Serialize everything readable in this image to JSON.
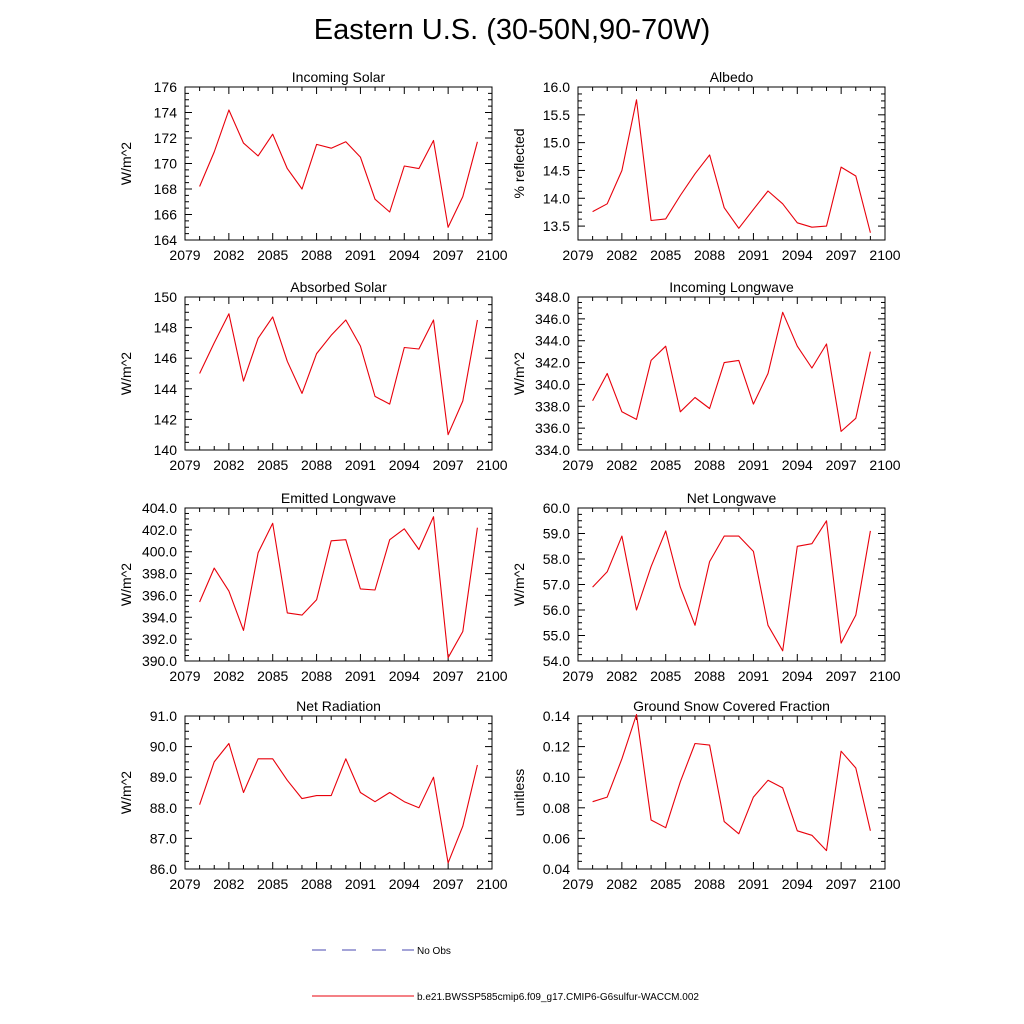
{
  "title": "Eastern U.S. (30-50N,90-70W)",
  "legend": {
    "obs_label": "No Obs",
    "obs_color": "#4a4ab0",
    "model_label": "b.e21.BWSSP585cmip6.f09_g17.CMIP6-G6sulfur-WACCM.002",
    "model_color": "#e8000b"
  },
  "chart_data": [
    {
      "type": "line",
      "title": "Incoming Solar",
      "ylabel": "W/m^2",
      "xlim": [
        2079,
        2100
      ],
      "x_ticks": [
        "2079",
        "2082",
        "2085",
        "2088",
        "2091",
        "2094",
        "2097",
        "2100"
      ],
      "ylim": [
        164,
        176
      ],
      "y_ticks": [
        "164",
        "166",
        "168",
        "170",
        "172",
        "174",
        "176"
      ],
      "series": [
        {
          "name": "b.e21.BWSSP585cmip6.f09_g17.CMIP6-G6sulfur-WACCM.002",
          "x": [
            2080,
            2081,
            2082,
            2083,
            2084,
            2085,
            2086,
            2087,
            2088,
            2089,
            2090,
            2091,
            2092,
            2093,
            2094,
            2095,
            2096,
            2097,
            2098,
            2099
          ],
          "values": [
            168.2,
            170.9,
            174.2,
            171.6,
            170.6,
            172.3,
            169.6,
            168.0,
            171.5,
            171.2,
            171.7,
            170.5,
            167.2,
            166.2,
            169.8,
            169.6,
            171.8,
            165.0,
            167.4,
            171.7
          ]
        }
      ]
    },
    {
      "type": "line",
      "title": "Albedo",
      "ylabel": "% reflected",
      "xlim": [
        2079,
        2100
      ],
      "x_ticks": [
        "2079",
        "2082",
        "2085",
        "2088",
        "2091",
        "2094",
        "2097",
        "2100"
      ],
      "ylim": [
        13.25,
        16.0
      ],
      "y_ticks": [
        "13.5",
        "14.0",
        "14.5",
        "15.0",
        "15.5",
        "16.0"
      ],
      "series": [
        {
          "name": "b.e21.BWSSP585cmip6.f09_g17.CMIP6-G6sulfur-WACCM.002",
          "x": [
            2080,
            2081,
            2082,
            2083,
            2084,
            2085,
            2086,
            2087,
            2088,
            2089,
            2090,
            2091,
            2092,
            2093,
            2094,
            2095,
            2096,
            2097,
            2098,
            2099
          ],
          "values": [
            13.76,
            13.9,
            14.5,
            15.77,
            13.6,
            13.63,
            14.05,
            14.44,
            14.78,
            13.83,
            13.46,
            13.8,
            14.13,
            13.9,
            13.56,
            13.48,
            13.5,
            14.56,
            14.4,
            13.38
          ]
        }
      ]
    },
    {
      "type": "line",
      "title": "Absorbed Solar",
      "ylabel": "W/m^2",
      "xlim": [
        2079,
        2100
      ],
      "x_ticks": [
        "2079",
        "2082",
        "2085",
        "2088",
        "2091",
        "2094",
        "2097",
        "2100"
      ],
      "ylim": [
        140,
        150
      ],
      "y_ticks": [
        "140",
        "142",
        "144",
        "146",
        "148",
        "150"
      ],
      "series": [
        {
          "name": "b.e21.BWSSP585cmip6.f09_g17.CMIP6-G6sulfur-WACCM.002",
          "x": [
            2080,
            2081,
            2082,
            2083,
            2084,
            2085,
            2086,
            2087,
            2088,
            2089,
            2090,
            2091,
            2092,
            2093,
            2094,
            2095,
            2096,
            2097,
            2098,
            2099
          ],
          "values": [
            145.0,
            147.0,
            148.9,
            144.5,
            147.3,
            148.7,
            145.8,
            143.7,
            146.3,
            147.5,
            148.5,
            146.8,
            143.5,
            143.0,
            146.7,
            146.6,
            148.5,
            141.0,
            143.2,
            148.5
          ]
        }
      ]
    },
    {
      "type": "line",
      "title": "Incoming Longwave",
      "ylabel": "W/m^2",
      "xlim": [
        2079,
        2100
      ],
      "x_ticks": [
        "2079",
        "2082",
        "2085",
        "2088",
        "2091",
        "2094",
        "2097",
        "2100"
      ],
      "ylim": [
        334,
        348
      ],
      "y_ticks": [
        "334.0",
        "336.0",
        "338.0",
        "340.0",
        "342.0",
        "344.0",
        "346.0",
        "348.0"
      ],
      "series": [
        {
          "name": "b.e21.BWSSP585cmip6.f09_g17.CMIP6-G6sulfur-WACCM.002",
          "x": [
            2080,
            2081,
            2082,
            2083,
            2084,
            2085,
            2086,
            2087,
            2088,
            2089,
            2090,
            2091,
            2092,
            2093,
            2094,
            2095,
            2096,
            2097,
            2098,
            2099
          ],
          "values": [
            338.5,
            341.0,
            337.5,
            336.8,
            342.2,
            343.5,
            337.5,
            338.8,
            337.8,
            342.0,
            342.2,
            338.2,
            341.0,
            346.6,
            343.5,
            341.5,
            343.7,
            335.7,
            336.9,
            343.0
          ]
        }
      ]
    },
    {
      "type": "line",
      "title": "Emitted Longwave",
      "ylabel": "W/m^2",
      "xlim": [
        2079,
        2100
      ],
      "x_ticks": [
        "2079",
        "2082",
        "2085",
        "2088",
        "2091",
        "2094",
        "2097",
        "2100"
      ],
      "ylim": [
        390,
        404
      ],
      "y_ticks": [
        "390.0",
        "392.0",
        "394.0",
        "396.0",
        "398.0",
        "400.0",
        "402.0",
        "404.0"
      ],
      "series": [
        {
          "name": "b.e21.BWSSP585cmip6.f09_g17.CMIP6-G6sulfur-WACCM.002",
          "x": [
            2080,
            2081,
            2082,
            2083,
            2084,
            2085,
            2086,
            2087,
            2088,
            2089,
            2090,
            2091,
            2092,
            2093,
            2094,
            2095,
            2096,
            2097,
            2098,
            2099
          ],
          "values": [
            395.4,
            398.5,
            396.4,
            392.8,
            399.9,
            402.6,
            394.4,
            394.2,
            395.6,
            401.0,
            401.1,
            396.6,
            396.5,
            401.1,
            402.1,
            400.2,
            403.2,
            390.3,
            392.7,
            402.2
          ]
        }
      ]
    },
    {
      "type": "line",
      "title": "Net Longwave",
      "ylabel": "W/m^2",
      "xlim": [
        2079,
        2100
      ],
      "x_ticks": [
        "2079",
        "2082",
        "2085",
        "2088",
        "2091",
        "2094",
        "2097",
        "2100"
      ],
      "ylim": [
        54,
        60
      ],
      "y_ticks": [
        "54.0",
        "55.0",
        "56.0",
        "57.0",
        "58.0",
        "59.0",
        "60.0"
      ],
      "series": [
        {
          "name": "b.e21.BWSSP585cmip6.f09_g17.CMIP6-G6sulfur-WACCM.002",
          "x": [
            2080,
            2081,
            2082,
            2083,
            2084,
            2085,
            2086,
            2087,
            2088,
            2089,
            2090,
            2091,
            2092,
            2093,
            2094,
            2095,
            2096,
            2097,
            2098,
            2099
          ],
          "values": [
            56.9,
            57.5,
            58.9,
            56.0,
            57.7,
            59.1,
            56.9,
            55.4,
            57.9,
            58.9,
            58.9,
            58.3,
            55.4,
            54.4,
            58.5,
            58.6,
            59.5,
            54.7,
            55.8,
            59.1
          ]
        }
      ]
    },
    {
      "type": "line",
      "title": "Net Radiation",
      "ylabel": "W/m^2",
      "xlim": [
        2079,
        2100
      ],
      "x_ticks": [
        "2079",
        "2082",
        "2085",
        "2088",
        "2091",
        "2094",
        "2097",
        "2100"
      ],
      "ylim": [
        86,
        91
      ],
      "y_ticks": [
        "86.0",
        "87.0",
        "88.0",
        "89.0",
        "90.0",
        "91.0"
      ],
      "series": [
        {
          "name": "b.e21.BWSSP585cmip6.f09_g17.CMIP6-G6sulfur-WACCM.002",
          "x": [
            2080,
            2081,
            2082,
            2083,
            2084,
            2085,
            2086,
            2087,
            2088,
            2089,
            2090,
            2091,
            2092,
            2093,
            2094,
            2095,
            2096,
            2097,
            2098,
            2099
          ],
          "values": [
            88.1,
            89.5,
            90.1,
            88.5,
            89.6,
            89.6,
            88.9,
            88.3,
            88.4,
            88.4,
            89.6,
            88.5,
            88.2,
            88.5,
            88.2,
            88.0,
            89.0,
            86.2,
            87.4,
            89.4
          ]
        }
      ]
    },
    {
      "type": "line",
      "title": "Ground Snow Covered Fraction",
      "ylabel": "unitless",
      "xlim": [
        2079,
        2100
      ],
      "x_ticks": [
        "2079",
        "2082",
        "2085",
        "2088",
        "2091",
        "2094",
        "2097",
        "2100"
      ],
      "ylim": [
        0.04,
        0.14
      ],
      "y_ticks": [
        "0.04",
        "0.06",
        "0.08",
        "0.10",
        "0.12",
        "0.14"
      ],
      "series": [
        {
          "name": "b.e21.BWSSP585cmip6.f09_g17.CMIP6-G6sulfur-WACCM.002",
          "x": [
            2080,
            2081,
            2082,
            2083,
            2084,
            2085,
            2086,
            2087,
            2088,
            2089,
            2090,
            2091,
            2092,
            2093,
            2094,
            2095,
            2096,
            2097,
            2098,
            2099
          ],
          "values": [
            0.084,
            0.087,
            0.112,
            0.141,
            0.072,
            0.067,
            0.097,
            0.122,
            0.121,
            0.071,
            0.063,
            0.087,
            0.098,
            0.093,
            0.065,
            0.062,
            0.052,
            0.117,
            0.106,
            0.065
          ]
        }
      ]
    }
  ]
}
